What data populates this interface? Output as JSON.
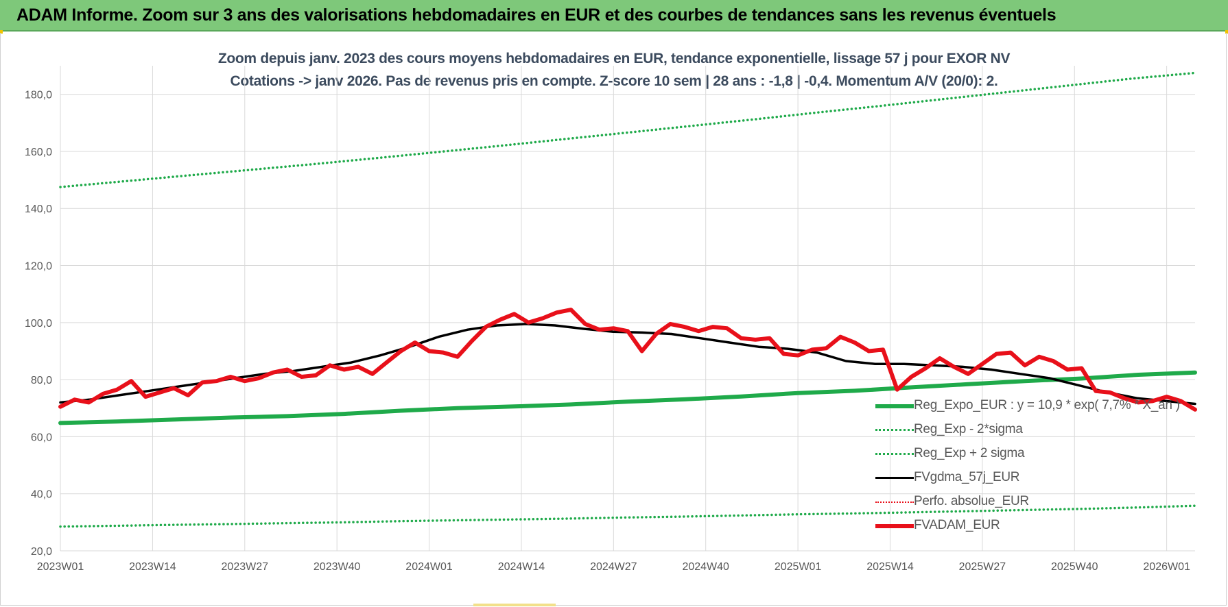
{
  "header": {
    "title": "ADAM Informe. Zoom sur 3 ans des valorisations hebdomadaires en EUR et des courbes de tendances sans les revenus éventuels"
  },
  "chart_data": {
    "type": "line",
    "title_line1": "Zoom depuis janv. 2023 des cours moyens hebdomadaires en EUR, tendance exponentielle, lissage 57 j pour EXOR NV",
    "title_line2": "Cotations -> janv 2026. Pas de revenus pris en compte. Z-score 10 sem | 28 ans : -1,8 | -0,4. Momentum A/V (20/0): 2.",
    "ylim": [
      20,
      190
    ],
    "ytick_values": [
      20,
      40,
      60,
      80,
      100,
      120,
      140,
      160,
      180
    ],
    "yticks": [
      "20,0",
      "40,0",
      "60,0",
      "80,0",
      "100,0",
      "120,0",
      "140,0",
      "160,0",
      "180,0"
    ],
    "xticks": [
      "2023W01",
      "2023W14",
      "2023W27",
      "2023W40",
      "2024W01",
      "2024W14",
      "2024W27",
      "2024W40",
      "2025W01",
      "2025W14",
      "2025W27",
      "2025W40",
      "2026W01"
    ],
    "weeks_between_ticks": 13,
    "grid": true,
    "legend_position": "bottom-right",
    "series": [
      {
        "name": "Reg_Expo_EUR : y = 10,9 * exp( 7,7% * X_an )",
        "color": "#1faa4a",
        "style": "solid-thick",
        "values": [
          64.8,
          65.3,
          66.0,
          66.7,
          67.2,
          68.0,
          69.1,
          70.0,
          70.6,
          71.3,
          72.3,
          73.1,
          74.1,
          75.3,
          76.1,
          77.3,
          78.4,
          79.5,
          80.4,
          81.7,
          82.5
        ]
      },
      {
        "name": "Reg_Exp - 2*sigma",
        "color": "#1faa4a",
        "style": "dotted",
        "values": [
          28.5,
          28.8,
          29.1,
          29.4,
          29.7,
          30.0,
          30.4,
          30.7,
          31.0,
          31.3,
          31.7,
          32.0,
          32.4,
          32.8,
          33.1,
          33.5,
          33.9,
          34.3,
          34.7,
          35.2,
          35.8
        ]
      },
      {
        "name": "Reg_Exp + 2 sigma",
        "color": "#1faa4a",
        "style": "dotted",
        "values": [
          147.5,
          149.5,
          151.5,
          153.5,
          155.5,
          157.6,
          159.8,
          162.0,
          164.3,
          166.6,
          168.9,
          171.2,
          173.6,
          175.9,
          178.3,
          180.7,
          183.1,
          185.5,
          187.5
        ]
      },
      {
        "name": "FVgdma_57j_EUR",
        "color": "#000000",
        "style": "solid",
        "values": [
          72.0,
          73.0,
          74.5,
          76.0,
          77.5,
          79.0,
          80.5,
          82.0,
          83.0,
          84.5,
          86.0,
          88.5,
          91.5,
          95.0,
          97.5,
          99.0,
          99.5,
          99.0,
          97.8,
          96.8,
          96.5,
          96.0,
          94.5,
          93.0,
          91.5,
          90.8,
          89.5,
          86.5,
          85.5,
          85.5,
          85.0,
          84.5,
          83.5,
          82.0,
          80.5,
          78.0,
          75.5,
          73.5,
          72.5,
          71.5
        ]
      },
      {
        "name": "Perfo. absolue_EUR",
        "color": "#e8101a",
        "style": "dotted-thin",
        "values": []
      },
      {
        "name": "FVADAM_EUR",
        "color": "#e8101a",
        "style": "solid-thick",
        "values": [
          70.5,
          73.0,
          72.0,
          75.0,
          76.5,
          79.5,
          74.0,
          75.5,
          77.0,
          74.5,
          79.0,
          79.5,
          81.0,
          79.5,
          80.5,
          82.5,
          83.5,
          81.0,
          81.5,
          85.0,
          83.5,
          84.5,
          82.0,
          86.0,
          90.0,
          93.0,
          90.0,
          89.5,
          88.0,
          93.5,
          98.5,
          101.0,
          103.0,
          100.0,
          101.5,
          103.5,
          104.5,
          99.5,
          97.5,
          98.0,
          97.0,
          90.0,
          96.0,
          99.5,
          98.5,
          97.0,
          98.5,
          98.0,
          94.5,
          94.0,
          94.5,
          89.0,
          88.5,
          90.5,
          91.0,
          95.0,
          93.0,
          90.0,
          90.5,
          76.5,
          81.0,
          84.0,
          87.5,
          84.5,
          82.0,
          85.5,
          89.0,
          89.5,
          85.0,
          88.0,
          86.5,
          83.5,
          84.0,
          76.0,
          75.5,
          73.5,
          72.0,
          72.5,
          74.0,
          72.5,
          69.5
        ]
      }
    ]
  }
}
